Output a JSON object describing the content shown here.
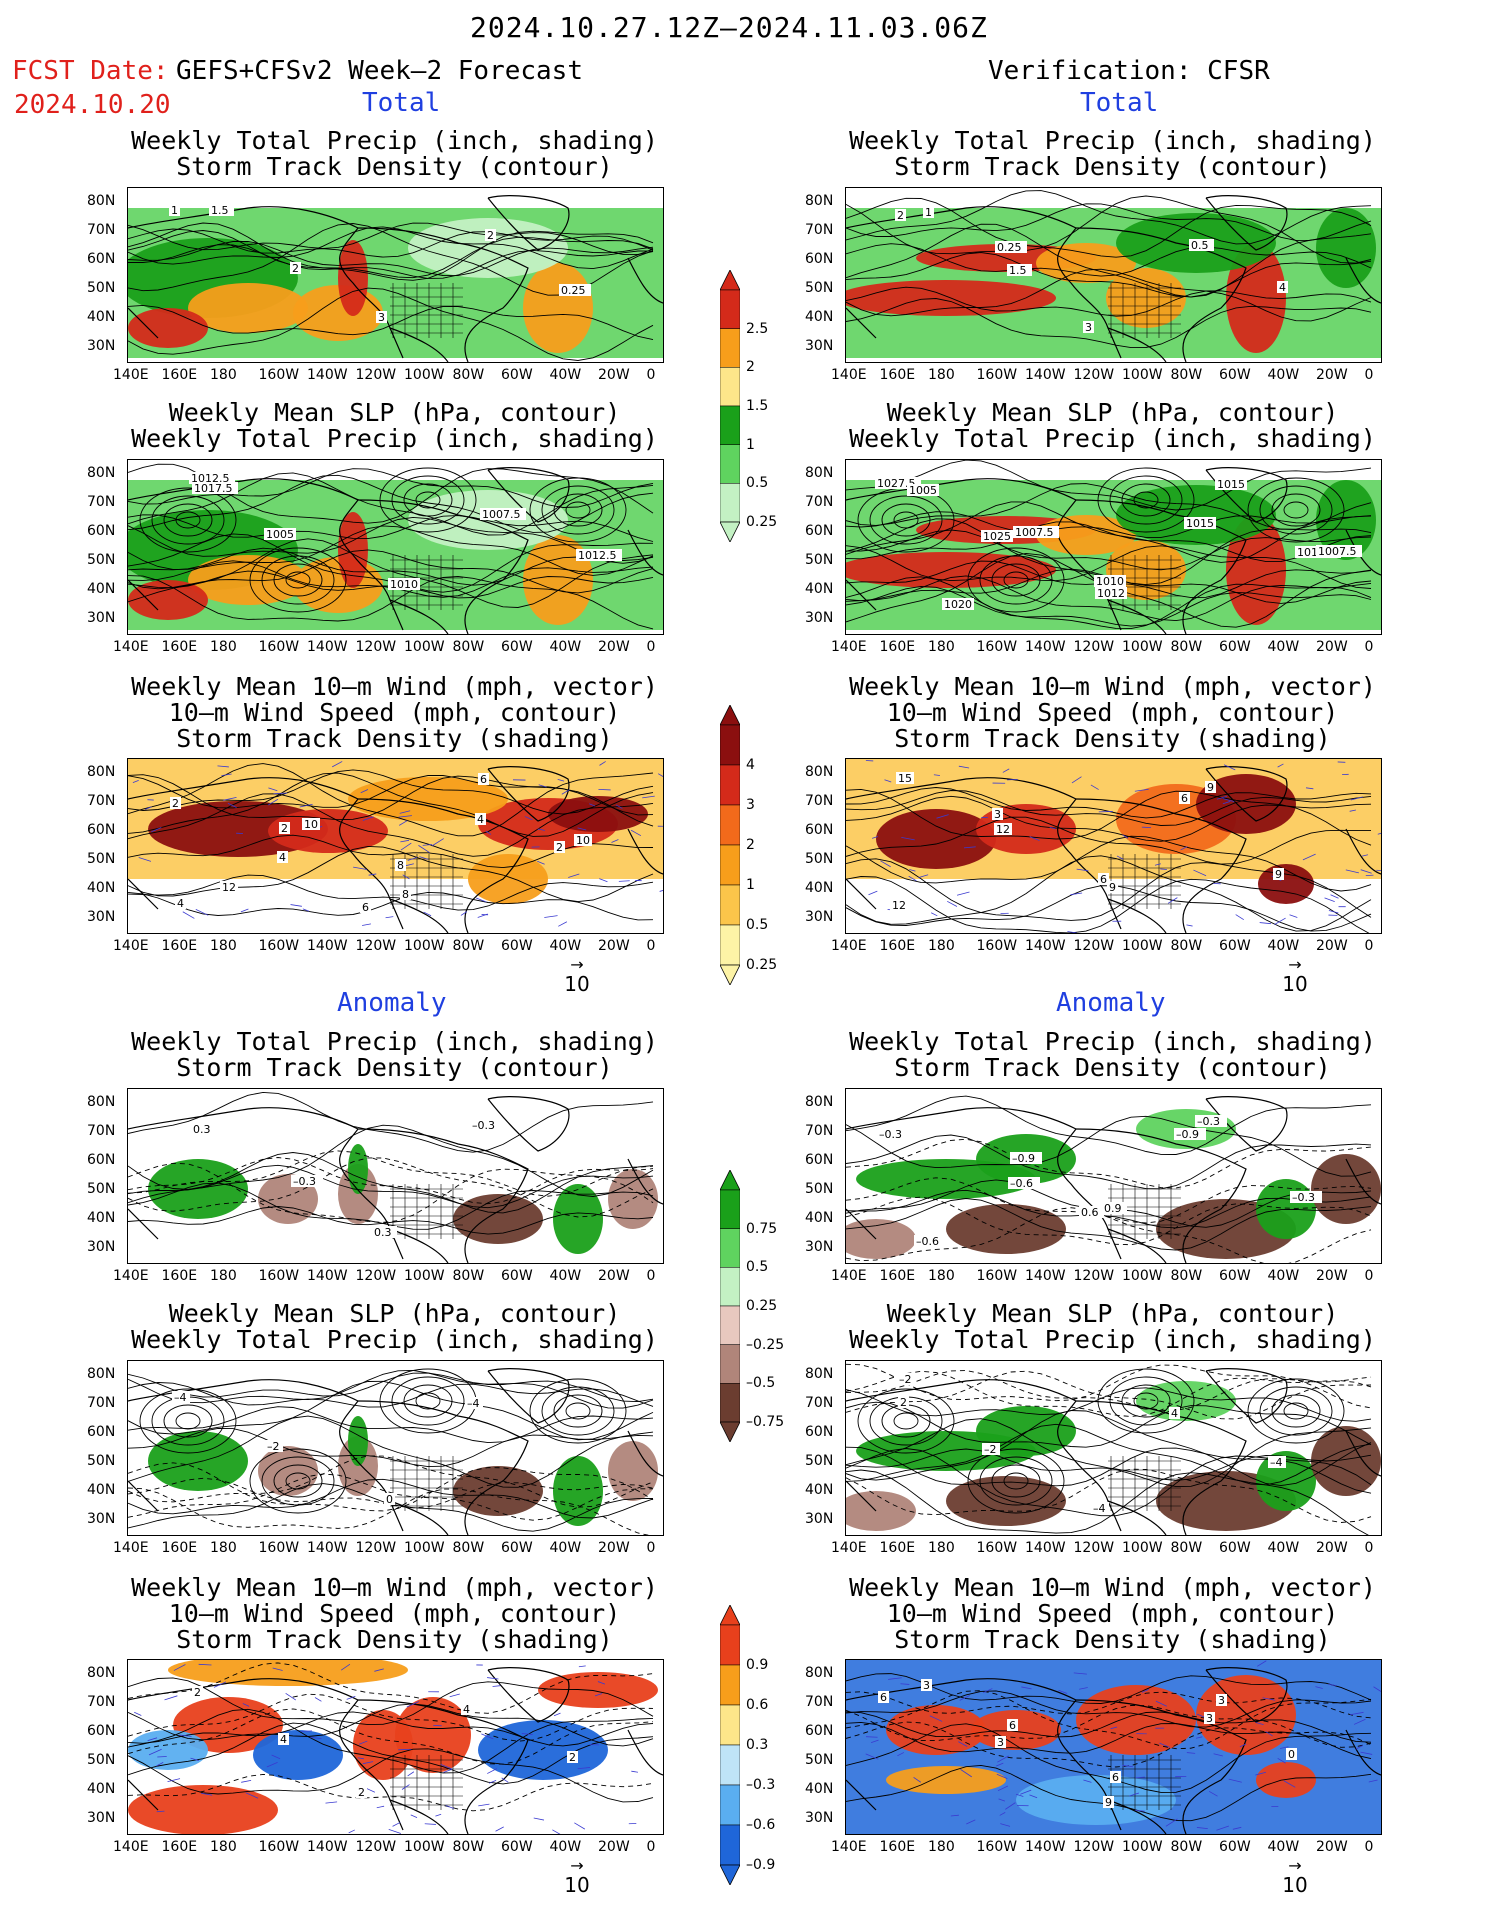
{
  "header": {
    "period": "2024.10.27.12Z–2024.11.03.06Z",
    "fcst_label": "FCST Date:",
    "fcst_model": "GEFS+CFSv2 Week–2 Forecast",
    "fcst_date": "2024.10.20",
    "verification": "Verification: CFSR"
  },
  "sections": {
    "total": "Total",
    "anomaly": "Anomaly"
  },
  "panel_titles": {
    "precip_storm": [
      "Weekly Total Precip (inch, shading)",
      "Storm Track Density (contour)"
    ],
    "slp_precip": [
      "Weekly Mean SLP (hPa, contour)",
      "Weekly Total Precip (inch, shading)"
    ],
    "wind_storm": [
      "Weekly Mean 10–m Wind (mph, vector)",
      "10–m Wind Speed (mph, contour)",
      "Storm Track Density (shading)"
    ]
  },
  "axes": {
    "lat_labels": [
      "80N",
      "70N",
      "60N",
      "50N",
      "40N",
      "30N"
    ],
    "lon_labels": [
      "140E",
      "160E",
      "180",
      "160W",
      "140W",
      "120W",
      "100W",
      "80W",
      "60W",
      "40W",
      "20W",
      "0"
    ]
  },
  "vector_reference": "10",
  "colorbars": {
    "precip_total": {
      "labels": [
        "2.5",
        "2",
        "1.5",
        "1",
        "0.5",
        "0.25"
      ],
      "colors": [
        "#d42a1a",
        "#f79e1b",
        "#fde68a",
        "#1aa01a",
        "#5fd35f",
        "#c3f1c3"
      ]
    },
    "storm_total": {
      "labels": [
        "4",
        "3",
        "2",
        "1",
        "0.5",
        "0.25"
      ],
      "colors": [
        "#8b0f0f",
        "#d42a1a",
        "#f26a1b",
        "#f79e1b",
        "#fbc54a",
        "#fdf3a6"
      ]
    },
    "precip_anom": {
      "labels": [
        "0.75",
        "0.5",
        "0.25",
        "–0.25",
        "–0.5",
        "–0.75"
      ],
      "colors": [
        "#1aa01a",
        "#5fd35f",
        "#c3f1c3",
        "#e8c8bf",
        "#b0857a",
        "#6b3d30"
      ]
    },
    "storm_anom": {
      "labels": [
        "0.9",
        "0.6",
        "0.3",
        "–0.3",
        "–0.6",
        "–0.9"
      ],
      "colors": [
        "#e8401c",
        "#f79e1b",
        "#fde68a",
        "#bfe4f7",
        "#5aaef0",
        "#1f66d9"
      ]
    }
  },
  "contour_labels": {
    "fcst_total_precip": [
      "1",
      "2",
      "3",
      "2",
      "0.25",
      "1.5"
    ],
    "verif_total_precip": [
      "2",
      "1.5",
      "3",
      "0.5",
      "4",
      "1",
      "0.25"
    ],
    "fcst_total_slp": [
      "1012.5",
      "1005",
      "1010",
      "1007.5",
      "1012.5",
      "1017.5"
    ],
    "verif_total_slp": [
      "1027.5",
      "1025",
      "1012",
      "1015",
      "1017.5",
      "1005",
      "1007.5",
      "1010",
      "1015",
      "1007.5",
      "1020"
    ],
    "fcst_total_wind": [
      "2",
      "4",
      "6",
      "4",
      "2",
      "4",
      "2",
      "8",
      "6",
      "10",
      "12",
      "10",
      "8"
    ],
    "verif_total_wind": [
      "15",
      "12",
      "9",
      "6",
      "9",
      "12",
      "3",
      "6",
      "9"
    ],
    "fcst_anom_precip": [
      "0.3",
      "–0.3",
      "0.3",
      "–0.3"
    ],
    "verif_anom_precip": [
      "–0.3",
      "–0.6",
      "0.6",
      "–0.9",
      "–0.3",
      "–0.6",
      "–0.9",
      "0.9",
      "–0.3"
    ],
    "fcst_anom_slp": [
      "–4",
      "–2",
      "0",
      "–4"
    ],
    "verif_anom_slp": [
      "2",
      "–2",
      "–4",
      "4",
      "–4",
      "–2"
    ],
    "fcst_anom_wind": [
      "2",
      "4",
      "2",
      "4",
      "2"
    ],
    "verif_anom_wind": [
      "6",
      "3",
      "9",
      "3",
      "0",
      "3",
      "6",
      "6",
      "3"
    ]
  }
}
